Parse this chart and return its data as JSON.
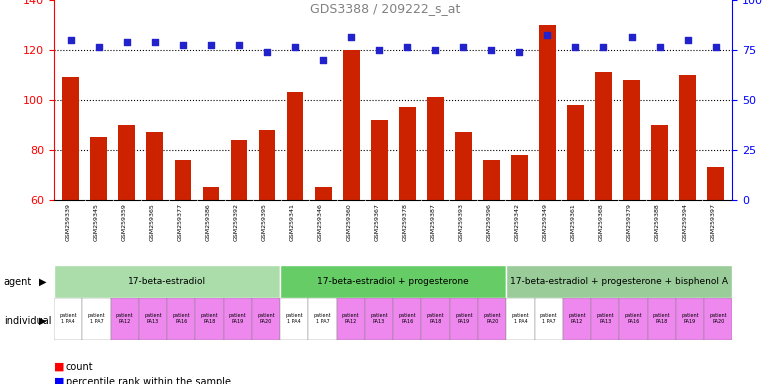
{
  "title": "GDS3388 / 209222_s_at",
  "samples": [
    "GSM259339",
    "GSM259345",
    "GSM259359",
    "GSM259365",
    "GSM259377",
    "GSM259386",
    "GSM259392",
    "GSM259395",
    "GSM259341",
    "GSM259346",
    "GSM259360",
    "GSM259367",
    "GSM259378",
    "GSM259387",
    "GSM259393",
    "GSM259396",
    "GSM259342",
    "GSM259349",
    "GSM259361",
    "GSM259368",
    "GSM259379",
    "GSM259388",
    "GSM259394",
    "GSM259397"
  ],
  "counts": [
    109,
    85,
    90,
    87,
    76,
    65,
    84,
    88,
    103,
    65,
    120,
    92,
    97,
    101,
    87,
    76,
    78,
    130,
    98,
    111,
    108,
    90,
    110,
    73
  ],
  "percentile": [
    124,
    121,
    123,
    123,
    122,
    122,
    122,
    119,
    121,
    116,
    125,
    120,
    121,
    120,
    121,
    120,
    119,
    126,
    121,
    121,
    125,
    121,
    124,
    121
  ],
  "bar_color": "#cc2200",
  "dot_color": "#2222cc",
  "ylim_left": [
    60,
    140
  ],
  "ylim_right": [
    0,
    100
  ],
  "yticks_left": [
    60,
    80,
    100,
    120,
    140
  ],
  "yticks_right": [
    0,
    25,
    50,
    75,
    100
  ],
  "agent_groups": [
    {
      "label": "17-beta-estradiol",
      "start": 0,
      "end": 8,
      "color": "#aaddaa"
    },
    {
      "label": "17-beta-estradiol + progesterone",
      "start": 8,
      "end": 16,
      "color": "#66cc66"
    },
    {
      "label": "17-beta-estradiol + progesterone + bisphenol A",
      "start": 16,
      "end": 24,
      "color": "#99cc99"
    }
  ],
  "individual_labels": [
    "patient\n1 PA4",
    "patient\n1 PA7",
    "patient\nPA12",
    "patient\nPA13",
    "patient\nPA16",
    "patient\nPA18",
    "patient\nPA19",
    "patient\nPA20",
    "patient\n1 PA4",
    "patient\n1 PA7",
    "patient\nPA12",
    "patient\nPA13",
    "patient\nPA16",
    "patient\nPA18",
    "patient\nPA19",
    "patient\nPA20",
    "patient\n1 PA4",
    "patient\n1 PA7",
    "patient\nPA12",
    "patient\nPA13",
    "patient\nPA16",
    "patient\nPA18",
    "patient\nPA19",
    "patient\nPA20"
  ],
  "individual_colors": [
    "#ffffff",
    "#ffffff",
    "#ee88ee",
    "#ee88ee",
    "#ee88ee",
    "#ee88ee",
    "#ee88ee",
    "#ee88ee",
    "#ffffff",
    "#ffffff",
    "#ee88ee",
    "#ee88ee",
    "#ee88ee",
    "#ee88ee",
    "#ee88ee",
    "#ee88ee",
    "#ffffff",
    "#ffffff",
    "#ee88ee",
    "#ee88ee",
    "#ee88ee",
    "#ee88ee",
    "#ee88ee",
    "#ee88ee"
  ],
  "bg_color": "#ffffff",
  "grid_color": "#aaaaaa"
}
